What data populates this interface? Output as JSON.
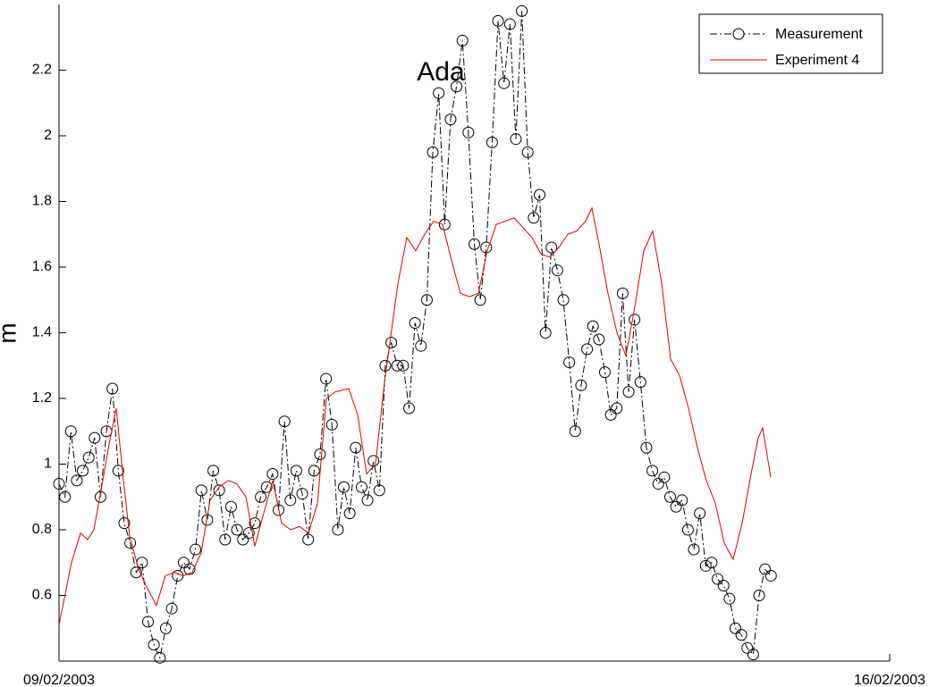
{
  "chart_data": {
    "type": "line",
    "title": "Ada",
    "ylabel": "m",
    "xlim": [
      0,
      7
    ],
    "xticks": [
      {
        "value": 0,
        "label": "09/02/2003"
      },
      {
        "value": 7,
        "label": "16/02/2003"
      }
    ],
    "ylim": [
      0.4,
      2.4
    ],
    "yticks": [
      0.6,
      0.8,
      1,
      1.2,
      1.4,
      1.6,
      1.8,
      2,
      2.2
    ],
    "grid": false,
    "legend": "upper right",
    "series": [
      {
        "name": "Measurement",
        "color": "#000000",
        "line_style": "dashdot",
        "marker": "circle",
        "x": [
          0,
          0.05,
          0.1,
          0.15,
          0.2,
          0.25,
          0.3,
          0.35,
          0.4,
          0.45,
          0.5,
          0.55,
          0.6,
          0.65,
          0.7,
          0.75,
          0.8,
          0.85,
          0.9,
          0.95,
          1,
          1.05,
          1.1,
          1.15,
          1.2,
          1.25,
          1.3,
          1.35,
          1.4,
          1.45,
          1.5,
          1.55,
          1.6,
          1.65,
          1.7,
          1.75,
          1.8,
          1.85,
          1.9,
          1.95,
          2,
          2.05,
          2.1,
          2.15,
          2.2,
          2.25,
          2.3,
          2.35,
          2.4,
          2.45,
          2.5,
          2.55,
          2.6,
          2.65,
          2.7,
          2.75,
          2.8,
          2.85,
          2.9,
          2.95,
          3,
          3.05,
          3.1,
          3.15,
          3.2,
          3.25,
          3.3,
          3.35,
          3.4,
          3.45,
          3.5,
          3.55,
          3.6,
          3.65,
          3.7,
          3.75,
          3.8,
          3.85,
          3.9,
          3.95,
          4,
          4.05,
          4.1,
          4.15,
          4.2,
          4.25,
          4.3,
          4.35,
          4.4,
          4.45,
          4.5,
          4.55,
          4.6,
          4.65,
          4.7,
          4.75,
          4.8,
          4.85,
          4.9,
          4.95,
          5,
          5.05,
          5.1,
          5.15,
          5.2,
          5.25,
          5.3,
          5.35,
          5.4,
          5.45,
          5.5,
          5.55,
          5.6,
          5.65,
          5.7,
          5.75,
          5.8,
          5.85,
          5.9,
          5.95,
          6
        ],
        "values": [
          0.94,
          0.9,
          1.1,
          0.95,
          0.98,
          1.02,
          1.08,
          0.9,
          1.1,
          1.23,
          0.98,
          0.82,
          0.76,
          0.67,
          0.7,
          0.52,
          0.45,
          0.41,
          0.5,
          0.56,
          0.66,
          0.7,
          0.68,
          0.74,
          0.92,
          0.83,
          0.98,
          0.92,
          0.77,
          0.87,
          0.8,
          0.77,
          0.79,
          0.82,
          0.9,
          0.93,
          0.97,
          0.86,
          1.13,
          0.89,
          0.98,
          0.91,
          0.77,
          0.98,
          1.03,
          1.26,
          1.12,
          0.8,
          0.93,
          0.85,
          1.05,
          0.93,
          0.89,
          1.01,
          0.92,
          1.3,
          1.37,
          1.3,
          1.3,
          1.17,
          1.43,
          1.36,
          1.5,
          1.95,
          2.13,
          1.73,
          2.05,
          2.15,
          2.29,
          2.01,
          1.67,
          1.5,
          1.66,
          1.98,
          2.35,
          2.16,
          2.34,
          1.99,
          2.38,
          1.95,
          1.75,
          1.82,
          1.4,
          1.66,
          1.59,
          1.5,
          1.31,
          1.1,
          1.24,
          1.35,
          1.42,
          1.38,
          1.28,
          1.15,
          1.17,
          1.52,
          1.22,
          1.44,
          1.25,
          1.05,
          0.98,
          0.94,
          0.96,
          0.9,
          0.87,
          0.89,
          0.8,
          0.74,
          0.85,
          0.69,
          0.7,
          0.65,
          0.63,
          0.59,
          0.5,
          0.48,
          0.44,
          0.42,
          0.6,
          0.68,
          0.66
        ]
      },
      {
        "name": "Experiment 4",
        "color": "#dd0000",
        "line_style": "solid",
        "marker": "none",
        "x": [
          0,
          0.105,
          0.181,
          0.241,
          0.294,
          0.369,
          0.422,
          0.482,
          0.543,
          0.595,
          0.671,
          0.746,
          0.821,
          0.896,
          0.972,
          1.047,
          1.122,
          1.198,
          1.273,
          1.349,
          1.424,
          1.499,
          1.575,
          1.65,
          1.725,
          1.801,
          1.876,
          1.952,
          2.027,
          2.102,
          2.178,
          2.253,
          2.328,
          2.441,
          2.517,
          2.592,
          2.667,
          2.743,
          2.856,
          2.931,
          3.006,
          3.082,
          3.157,
          3.232,
          3.308,
          3.383,
          3.459,
          3.534,
          3.609,
          3.685,
          3.76,
          3.835,
          3.911,
          3.986,
          4.061,
          4.137,
          4.212,
          4.288,
          4.363,
          4.438,
          4.491,
          4.551,
          4.626,
          4.702,
          4.777,
          4.853,
          4.928,
          5.003,
          5.079,
          5.154,
          5.229,
          5.305,
          5.38,
          5.455,
          5.531,
          5.606,
          5.681,
          5.757,
          5.832,
          5.892,
          5.93,
          5.998
        ],
        "values": [
          0.51,
          0.7,
          0.79,
          0.77,
          0.8,
          0.95,
          1.06,
          1.17,
          0.95,
          0.78,
          0.68,
          0.62,
          0.57,
          0.66,
          0.67,
          0.66,
          0.67,
          0.73,
          0.89,
          0.93,
          0.95,
          0.94,
          0.9,
          0.75,
          0.85,
          0.95,
          0.82,
          0.8,
          0.81,
          0.79,
          0.88,
          1.2,
          1.22,
          1.23,
          1.15,
          0.97,
          1,
          1.25,
          1.55,
          1.69,
          1.65,
          1.7,
          1.74,
          1.73,
          1.62,
          1.52,
          1.51,
          1.52,
          1.65,
          1.73,
          1.74,
          1.75,
          1.72,
          1.69,
          1.64,
          1.63,
          1.66,
          1.7,
          1.71,
          1.74,
          1.78,
          1.67,
          1.52,
          1.4,
          1.33,
          1.48,
          1.65,
          1.71,
          1.55,
          1.32,
          1.27,
          1.17,
          1.05,
          0.95,
          0.88,
          0.76,
          0.71,
          0.82,
          0.97,
          1.08,
          1.11,
          0.96
        ]
      }
    ]
  }
}
